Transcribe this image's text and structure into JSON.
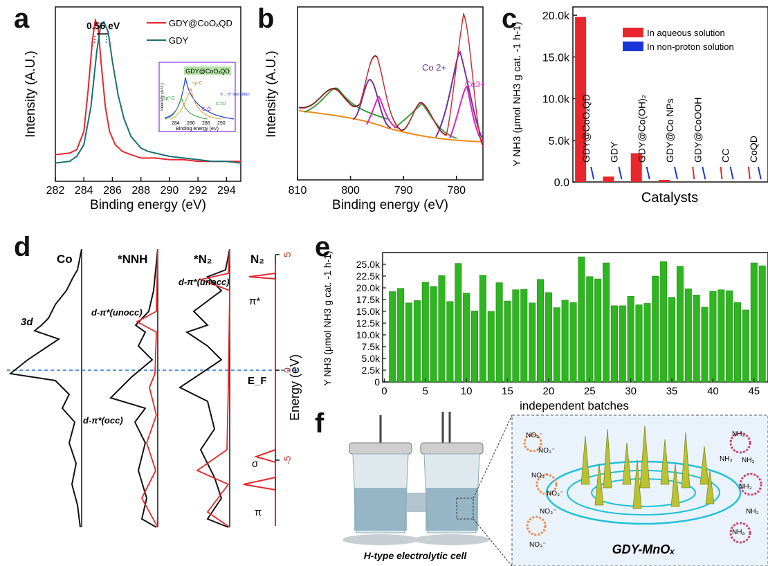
{
  "panels": {
    "a": "a",
    "b": "b",
    "c": "c",
    "d": "d",
    "e": "e",
    "f": "f"
  },
  "chart_data": [
    {
      "id": "a",
      "type": "line",
      "xlabel": "Binding energy (eV)",
      "ylabel": "Intensity (A.U.)",
      "xlim": [
        282,
        295
      ],
      "x_ticks": [
        "282",
        "284",
        "286",
        "288",
        "290",
        "292",
        "294"
      ],
      "annotation": "0.56 eV",
      "series": [
        {
          "name": "GDY@CoOₓQD",
          "color": "#e8262b",
          "x": [
            282,
            283,
            283.5,
            284,
            284.3,
            284.6,
            284.8,
            285,
            285.2,
            285.5,
            285.8,
            286.2,
            286.7,
            287.3,
            288,
            288.5,
            289,
            290,
            291,
            292,
            293,
            294,
            295
          ],
          "y": [
            0.16,
            0.17,
            0.19,
            0.3,
            0.55,
            0.85,
            0.97,
            0.93,
            0.72,
            0.45,
            0.3,
            0.22,
            0.18,
            0.16,
            0.14,
            0.14,
            0.14,
            0.13,
            0.13,
            0.12,
            0.12,
            0.12,
            0.12
          ]
        },
        {
          "name": "GDY",
          "color": "#1a6f73",
          "x": [
            282,
            283,
            283.5,
            284,
            284.5,
            284.9,
            285.2,
            285.4,
            285.7,
            286,
            286.4,
            286.8,
            287.3,
            288,
            288.5,
            289,
            290,
            291,
            292,
            293,
            294,
            295
          ],
          "y": [
            0.11,
            0.12,
            0.15,
            0.22,
            0.45,
            0.78,
            0.95,
            0.96,
            0.9,
            0.72,
            0.52,
            0.38,
            0.27,
            0.2,
            0.18,
            0.17,
            0.15,
            0.14,
            0.13,
            0.12,
            0.12,
            0.11
          ]
        }
      ],
      "inset": {
        "title": "GDY@CoOₓQD",
        "xlabel": "Binding energy (eV)",
        "ylabel": "Intensity (A.U.)",
        "x_ticks": [
          "284",
          "286",
          "288",
          "290"
        ],
        "peaks": [
          "sp²-C",
          "sp-C",
          "C-O",
          "C=O",
          "π→π* transition"
        ]
      }
    },
    {
      "id": "b",
      "type": "line",
      "xlabel": "Binding energy (eV)",
      "ylabel": "Intensity (A.U.)",
      "xlim": [
        810,
        775
      ],
      "x_ticks": [
        "810",
        "800",
        "790",
        "780"
      ],
      "annotations": [
        "Co 2+",
        "Co3+"
      ]
    },
    {
      "id": "c",
      "type": "bar",
      "xlabel": "Catalysts",
      "ylabel": "Y NH3 (μmol NH3 g cat. -1 h-1)",
      "ylim": [
        0,
        21000
      ],
      "y_ticks": [
        "0.0",
        "5.0k",
        "10.0k",
        "15.0k",
        "20.0k"
      ],
      "legend": [
        "In aqueous solution",
        "In non-proton solution"
      ],
      "categories": [
        "GDY@CoOₓQD",
        "GDY",
        "GDY@Co(OH)₂",
        "GDY@Co NPs",
        "GDY@CoOOH",
        "CC",
        "CoQD"
      ],
      "series": [
        {
          "name": "In aqueous solution",
          "color": "#e8262b",
          "values": [
            19800,
            650,
            3450,
            250,
            0,
            0,
            0
          ]
        },
        {
          "name": "In non-proton solution",
          "color": "#1a35d8",
          "values": [
            0,
            0,
            0,
            0,
            0,
            0,
            0
          ]
        }
      ]
    },
    {
      "id": "d",
      "type": "line",
      "ylabel": "Energy (eV)",
      "y_ticks": [
        "-5",
        "0",
        "5"
      ],
      "columns": [
        "Co",
        "*NNH",
        "*N₂",
        "N₂"
      ],
      "labels": [
        "3d",
        "d-π*(unocc)",
        "d-π*(occ)",
        "d-π*(unocc)",
        "π*",
        "E_F",
        "σ",
        "π"
      ]
    },
    {
      "id": "e",
      "type": "bar",
      "xlabel": "independent batches",
      "ylabel": "Y NH3 (μmol NH3 g cat. -1 h-1)",
      "ylim": [
        0,
        27500
      ],
      "y_ticks": [
        "0",
        "2.5k",
        "5.0k",
        "7.5k",
        "10.0k",
        "12.5k",
        "15.0k",
        "17.5k",
        "20.0k",
        "22.5k",
        "25.0k"
      ],
      "x_ticks": [
        "0",
        "5",
        "10",
        "15",
        "20",
        "25",
        "30",
        "35",
        "40",
        "45"
      ],
      "categories": [
        1,
        2,
        3,
        4,
        5,
        6,
        7,
        8,
        9,
        10,
        11,
        12,
        13,
        14,
        15,
        16,
        17,
        18,
        19,
        20,
        21,
        22,
        23,
        24,
        25,
        26,
        27,
        28,
        29,
        30,
        31,
        32,
        33,
        34,
        35,
        36,
        37,
        38,
        39,
        40,
        41,
        42,
        43,
        44,
        45,
        46
      ],
      "values": [
        19200,
        19900,
        16800,
        17300,
        21200,
        20300,
        22600,
        17100,
        25200,
        18900,
        15100,
        22700,
        15000,
        21100,
        17200,
        19600,
        19700,
        16800,
        21800,
        19000,
        15800,
        17400,
        16900,
        26600,
        22400,
        21900,
        25300,
        16200,
        16200,
        18200,
        16400,
        16700,
        22500,
        25600,
        18000,
        24600,
        19800,
        18500,
        15900,
        19300,
        19600,
        19400,
        16900,
        15300,
        25300,
        24700
      ],
      "color": "#2db61f"
    }
  ],
  "panel_f": {
    "cell_label": "H-type electrolytic cell",
    "catalyst_label": "GDY-MnOₓ",
    "left_species": [
      "NO₃⁻",
      "NO₃⁻",
      "NO₃⁻",
      "NO₃⁻",
      "NO₃⁻",
      "NO₃⁻"
    ],
    "right_species": [
      "NH₃",
      "NH₃",
      "NH₃",
      "NH₃",
      "NH₃",
      "NH₃"
    ]
  }
}
